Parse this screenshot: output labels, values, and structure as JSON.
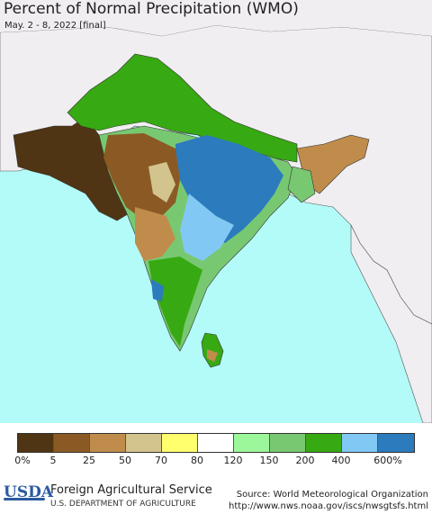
{
  "title": "Percent of Normal Precipitation (WMO)",
  "subtitle": "May. 2 - 8, 2022 [final]",
  "legend": {
    "colors": [
      "#4f3513",
      "#8b5a24",
      "#c08c4c",
      "#d3c48e",
      "#ffff6e",
      "#ffffff",
      "#9cf79a",
      "#78c872",
      "#37a912",
      "#82c8f5",
      "#2b7bbd"
    ],
    "labels": [
      "0%",
      "5",
      "25",
      "50",
      "70",
      "80",
      "120",
      "150",
      "200",
      "400",
      "600%"
    ]
  },
  "footer": {
    "logo_text": "USDA",
    "agency": "Foreign Agricultural Service",
    "department": "U.S. DEPARTMENT OF AGRICULTURE",
    "source": "Source: World Meteorological Organization",
    "url": "http://www.nws.noaa.gov/iscs/nwsgtsfs.html"
  }
}
